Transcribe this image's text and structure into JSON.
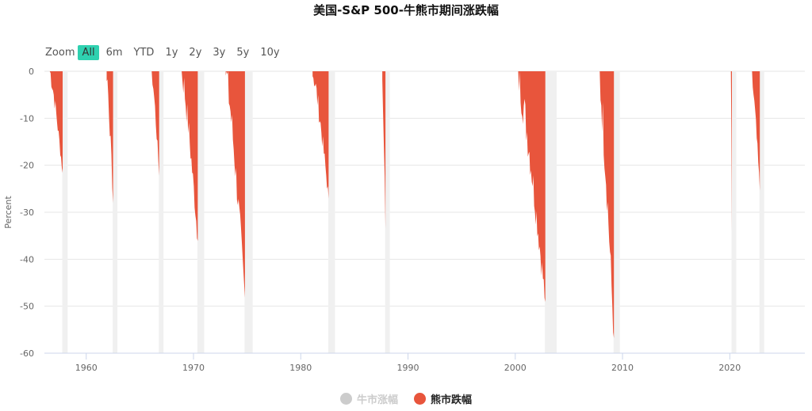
{
  "title": "美国-S&P 500-牛熊市期间涨跌幅",
  "zoom": {
    "label": "Zoom",
    "buttons": [
      "All",
      "6m",
      "YTD",
      "1y",
      "2y",
      "3y",
      "5y",
      "10y"
    ],
    "active": "All"
  },
  "colors": {
    "bear": "#e8553c",
    "bull": "#f0f0f0",
    "bull_legend": "#cccccc",
    "grid": "#e6e6e6",
    "axis": "#ccd6eb"
  },
  "chart_data": {
    "type": "bar",
    "title": "美国-S&P 500-牛熊市期间涨跌幅",
    "ylabel": "Percent",
    "xlabel": "",
    "ylim": [
      -60,
      0
    ],
    "xlim": [
      1956.1,
      2027.0
    ],
    "y_ticks": [
      0,
      -10,
      -20,
      -30,
      -40,
      -50,
      -60
    ],
    "x_ticks": [
      1960,
      1970,
      1980,
      1990,
      2000,
      2010,
      2020
    ],
    "legend": {
      "position": "bottom-center",
      "items": [
        "牛市涨幅",
        "熊市跌幅"
      ]
    },
    "legend_hidden": [
      "牛市涨幅"
    ],
    "series": [
      {
        "name": "熊市跌幅",
        "periods": [
          {
            "start": 1956.6,
            "end": 1957.8,
            "trough": -21.6
          },
          {
            "start": 1961.9,
            "end": 1962.5,
            "trough": -28.0
          },
          {
            "start": 1966.1,
            "end": 1966.8,
            "trough": -22.2
          },
          {
            "start": 1968.9,
            "end": 1970.4,
            "trough": -36.1
          },
          {
            "start": 1973.0,
            "end": 1974.8,
            "trough": -48.2
          },
          {
            "start": 1981.1,
            "end": 1982.6,
            "trough": -27.1
          },
          {
            "start": 1987.6,
            "end": 1987.9,
            "trough": -33.5
          },
          {
            "start": 2000.2,
            "end": 2002.8,
            "trough": -49.1
          },
          {
            "start": 2007.8,
            "end": 2009.2,
            "trough": -56.8
          },
          {
            "start": 2020.1,
            "end": 2020.2,
            "trough": -33.9
          },
          {
            "start": 2022.0,
            "end": 2022.8,
            "trough": -25.4
          }
        ]
      }
    ]
  }
}
